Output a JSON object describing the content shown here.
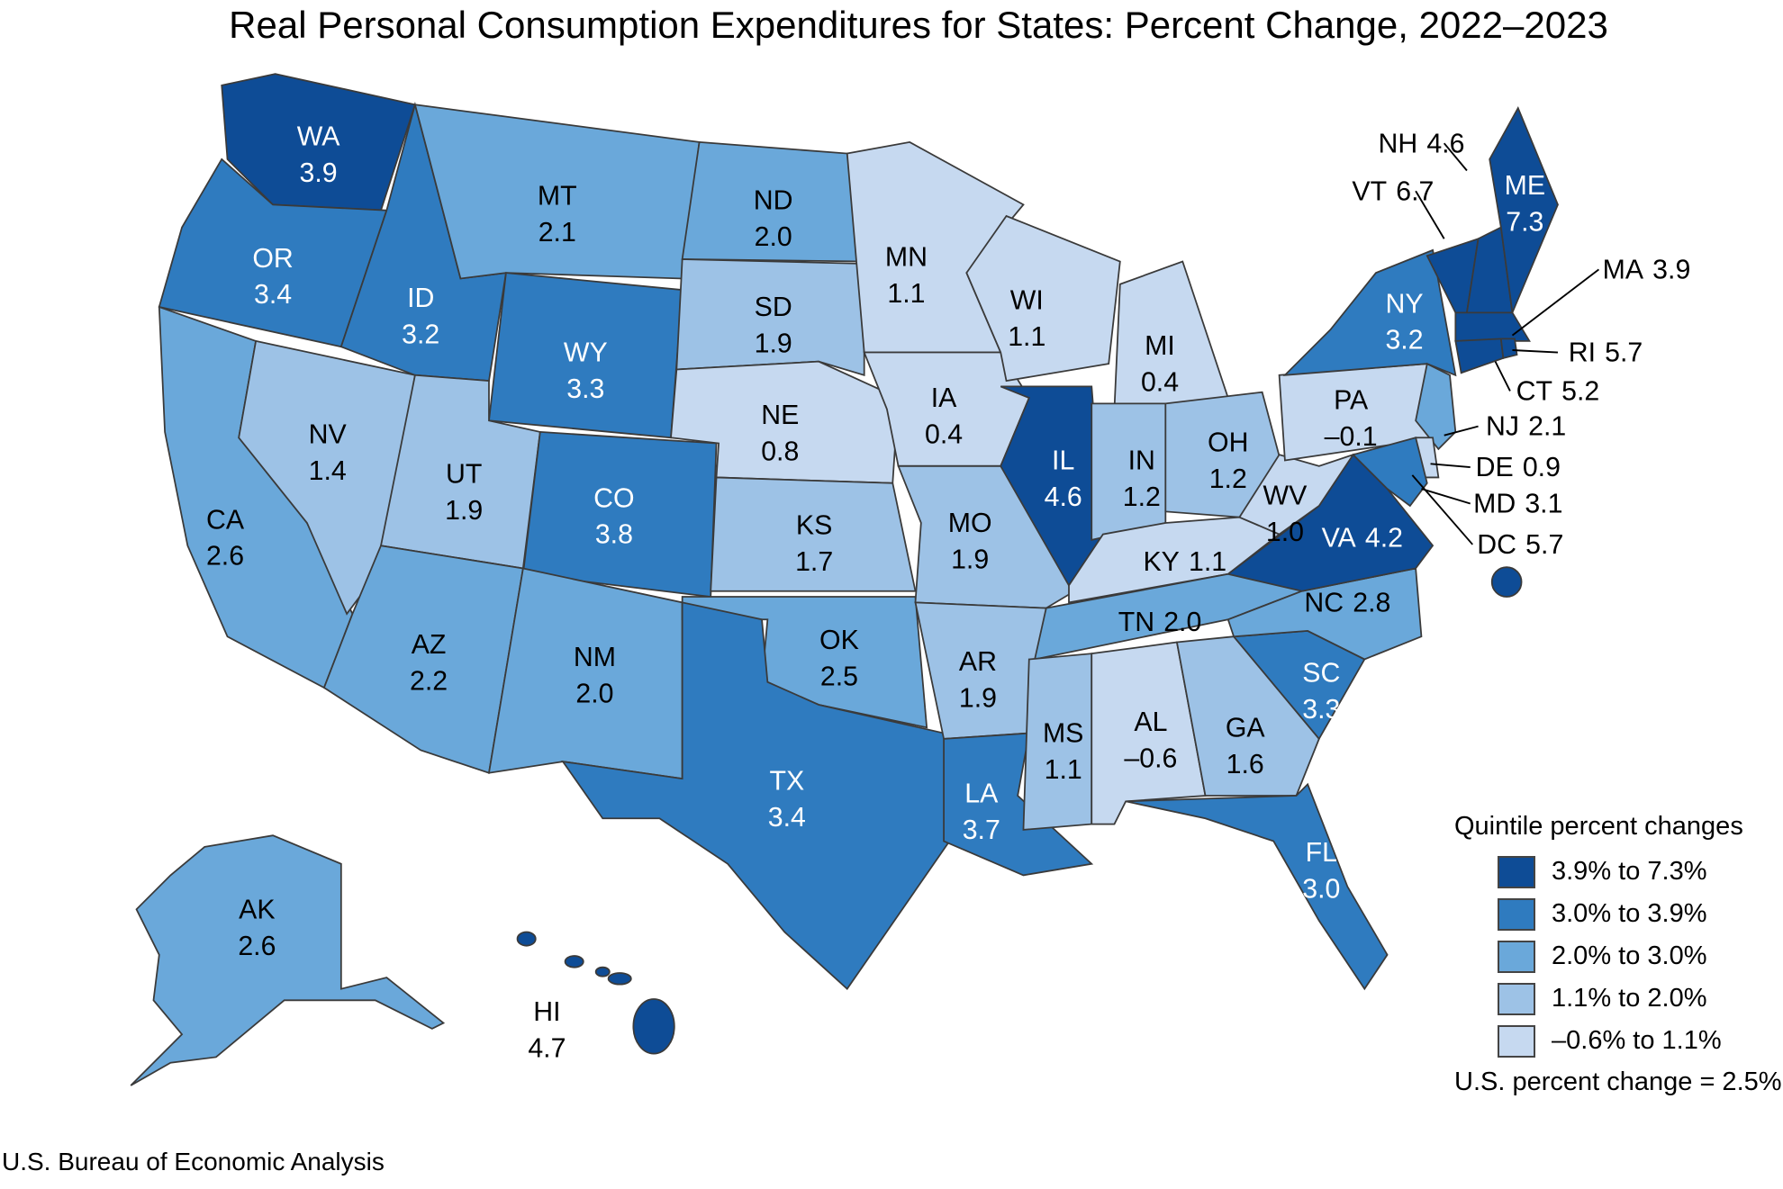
{
  "title": "Real Personal Consumption Expenditures for States: Percent Change, 2022–2023",
  "source": "U.S. Bureau of Economic Analysis",
  "legend": {
    "title": "Quintile percent changes",
    "items": [
      {
        "label": "3.9% to 7.3%",
        "color": "#0e4c96"
      },
      {
        "label": "3.0% to 3.9%",
        "color": "#2f7bbf"
      },
      {
        "label": "2.0% to 3.0%",
        "color": "#6aa8da"
      },
      {
        "label": "1.1% to 2.0%",
        "color": "#9dc2e6"
      },
      {
        "label": "–0.6% to 1.1%",
        "color": "#c6d9f0"
      }
    ],
    "us_note": "U.S. percent change = 2.5%"
  },
  "states": [
    {
      "abbr": "WA",
      "value": "3.9",
      "quintile": 0
    },
    {
      "abbr": "OR",
      "value": "3.4",
      "quintile": 1
    },
    {
      "abbr": "CA",
      "value": "2.6",
      "quintile": 2
    },
    {
      "abbr": "NV",
      "value": "1.4",
      "quintile": 3
    },
    {
      "abbr": "ID",
      "value": "3.2",
      "quintile": 1
    },
    {
      "abbr": "MT",
      "value": "2.1",
      "quintile": 2
    },
    {
      "abbr": "WY",
      "value": "3.3",
      "quintile": 1
    },
    {
      "abbr": "UT",
      "value": "1.9",
      "quintile": 3
    },
    {
      "abbr": "CO",
      "value": "3.8",
      "quintile": 1
    },
    {
      "abbr": "AZ",
      "value": "2.2",
      "quintile": 2
    },
    {
      "abbr": "NM",
      "value": "2.0",
      "quintile": 2
    },
    {
      "abbr": "ND",
      "value": "2.0",
      "quintile": 2
    },
    {
      "abbr": "SD",
      "value": "1.9",
      "quintile": 3
    },
    {
      "abbr": "NE",
      "value": "0.8",
      "quintile": 4
    },
    {
      "abbr": "KS",
      "value": "1.7",
      "quintile": 3
    },
    {
      "abbr": "OK",
      "value": "2.5",
      "quintile": 2
    },
    {
      "abbr": "TX",
      "value": "3.4",
      "quintile": 1
    },
    {
      "abbr": "MN",
      "value": "1.1",
      "quintile": 4
    },
    {
      "abbr": "IA",
      "value": "0.4",
      "quintile": 4
    },
    {
      "abbr": "MO",
      "value": "1.9",
      "quintile": 3
    },
    {
      "abbr": "AR",
      "value": "1.9",
      "quintile": 3
    },
    {
      "abbr": "LA",
      "value": "3.7",
      "quintile": 1
    },
    {
      "abbr": "WI",
      "value": "1.1",
      "quintile": 4
    },
    {
      "abbr": "IL",
      "value": "4.6",
      "quintile": 0
    },
    {
      "abbr": "MI",
      "value": "0.4",
      "quintile": 4
    },
    {
      "abbr": "IN",
      "value": "1.2",
      "quintile": 3
    },
    {
      "abbr": "OH",
      "value": "1.2",
      "quintile": 3
    },
    {
      "abbr": "KY",
      "value": "1.1",
      "quintile": 4
    },
    {
      "abbr": "TN",
      "value": "2.0",
      "quintile": 2
    },
    {
      "abbr": "MS",
      "value": "1.1",
      "quintile": 3
    },
    {
      "abbr": "AL",
      "value": "–0.6",
      "quintile": 4
    },
    {
      "abbr": "GA",
      "value": "1.6",
      "quintile": 3
    },
    {
      "abbr": "FL",
      "value": "3.0",
      "quintile": 1
    },
    {
      "abbr": "SC",
      "value": "3.3",
      "quintile": 1
    },
    {
      "abbr": "NC",
      "value": "2.8",
      "quintile": 2
    },
    {
      "abbr": "VA",
      "value": "4.2",
      "quintile": 0
    },
    {
      "abbr": "WV",
      "value": "1.0",
      "quintile": 4
    },
    {
      "abbr": "PA",
      "value": "–0.1",
      "quintile": 4
    },
    {
      "abbr": "NY",
      "value": "3.2",
      "quintile": 1
    },
    {
      "abbr": "VT",
      "value": "6.7",
      "quintile": 0
    },
    {
      "abbr": "NH",
      "value": "4.6",
      "quintile": 0
    },
    {
      "abbr": "ME",
      "value": "7.3",
      "quintile": 0
    },
    {
      "abbr": "MA",
      "value": "3.9",
      "quintile": 0
    },
    {
      "abbr": "CT",
      "value": "5.2",
      "quintile": 0
    },
    {
      "abbr": "RI",
      "value": "5.7",
      "quintile": 0
    },
    {
      "abbr": "NJ",
      "value": "2.1",
      "quintile": 2
    },
    {
      "abbr": "DE",
      "value": "0.9",
      "quintile": 4
    },
    {
      "abbr": "MD",
      "value": "3.1",
      "quintile": 1
    },
    {
      "abbr": "DC",
      "value": "5.7",
      "quintile": 0
    },
    {
      "abbr": "AK",
      "value": "2.6",
      "quintile": 2
    },
    {
      "abbr": "HI",
      "value": "4.7",
      "quintile": 0
    }
  ]
}
